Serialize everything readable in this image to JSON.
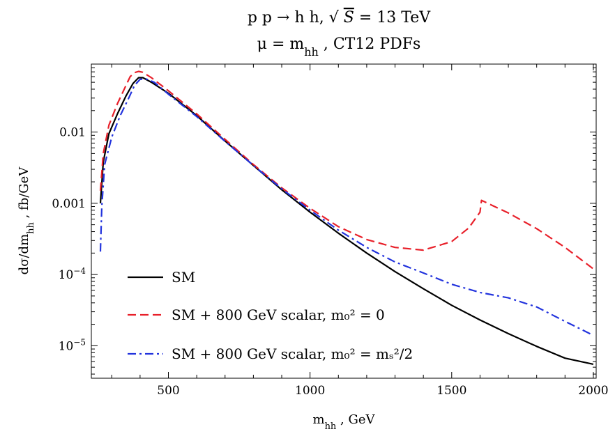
{
  "chart_data": {
    "type": "line",
    "title_line1": "p p → h h, √S = 13 TeV",
    "title_line2": "μ = m_hh , CT12 PDFs",
    "xlabel": "m_hh , GeV",
    "ylabel": "dσ/dm_hh , fb/GeV",
    "xlim": [
      228,
      2010
    ],
    "ylim": [
      3.5e-06,
      0.09
    ],
    "y_scale": "log",
    "x_ticks": [
      500,
      1000,
      1500,
      2000
    ],
    "y_ticks": [
      {
        "value": 1e-05,
        "mant": "10",
        "exp": "−5"
      },
      {
        "value": 0.0001,
        "mant": "10",
        "exp": "−4"
      },
      {
        "value": 0.001,
        "label": "0.001"
      },
      {
        "value": 0.01,
        "label": "0.01"
      }
    ],
    "grid": false,
    "legend_position": "bottom-left",
    "series": [
      {
        "name": "SM",
        "color": "#000000",
        "dash": "solid",
        "points": [
          [
            260,
            0.001
          ],
          [
            270,
            0.0038
          ],
          [
            290,
            0.0095
          ],
          [
            320,
            0.018
          ],
          [
            350,
            0.032
          ],
          [
            375,
            0.048
          ],
          [
            395,
            0.058
          ],
          [
            410,
            0.058
          ],
          [
            440,
            0.05
          ],
          [
            500,
            0.035
          ],
          [
            600,
            0.017
          ],
          [
            700,
            0.0075
          ],
          [
            800,
            0.0034
          ],
          [
            900,
            0.00155
          ],
          [
            1000,
            0.00075
          ],
          [
            1100,
            0.00038
          ],
          [
            1200,
            0.0002
          ],
          [
            1300,
            0.00011
          ],
          [
            1400,
            6.3e-05
          ],
          [
            1500,
            3.7e-05
          ],
          [
            1600,
            2.3e-05
          ],
          [
            1700,
            1.48e-05
          ],
          [
            1800,
            9.8e-06
          ],
          [
            1900,
            6.7e-06
          ],
          [
            2000,
            5.5e-06
          ]
        ]
      },
      {
        "name": "SM + 800 GeV scalar, m₀² = 0",
        "color": "#e8202a",
        "dash": "dashed",
        "points": [
          [
            260,
            0.0015
          ],
          [
            270,
            0.005
          ],
          [
            290,
            0.0125
          ],
          [
            320,
            0.025
          ],
          [
            350,
            0.045
          ],
          [
            365,
            0.06
          ],
          [
            380,
            0.068
          ],
          [
            395,
            0.071
          ],
          [
            410,
            0.069
          ],
          [
            440,
            0.058
          ],
          [
            500,
            0.038
          ],
          [
            600,
            0.018
          ],
          [
            700,
            0.0079
          ],
          [
            800,
            0.0035
          ],
          [
            900,
            0.00165
          ],
          [
            1000,
            0.00085
          ],
          [
            1100,
            0.00047
          ],
          [
            1200,
            0.00031
          ],
          [
            1300,
            0.00024
          ],
          [
            1400,
            0.00022
          ],
          [
            1500,
            0.00029
          ],
          [
            1560,
            0.00045
          ],
          [
            1600,
            0.00075
          ],
          [
            1605,
            0.0011
          ],
          [
            1700,
            0.00073
          ],
          [
            1800,
            0.00044
          ],
          [
            1900,
            0.00024
          ],
          [
            2000,
            0.00012
          ]
        ]
      },
      {
        "name": "SM + 800 GeV scalar, m₀² = mₛ²/2",
        "color": "#2233dd",
        "dash": "dashdot",
        "points": [
          [
            260,
            0.00021
          ],
          [
            265,
            0.0009
          ],
          [
            275,
            0.0035
          ],
          [
            300,
            0.0085
          ],
          [
            330,
            0.017
          ],
          [
            360,
            0.03
          ],
          [
            380,
            0.045
          ],
          [
            400,
            0.055
          ],
          [
            420,
            0.056
          ],
          [
            450,
            0.05
          ],
          [
            500,
            0.034
          ],
          [
            600,
            0.0165
          ],
          [
            700,
            0.0074
          ],
          [
            800,
            0.0034
          ],
          [
            900,
            0.0016
          ],
          [
            1000,
            0.0008
          ],
          [
            1100,
            0.00042
          ],
          [
            1200,
            0.00024
          ],
          [
            1300,
            0.00015
          ],
          [
            1400,
            0.000105
          ],
          [
            1500,
            7.3e-05
          ],
          [
            1600,
            5.6e-05
          ],
          [
            1700,
            4.7e-05
          ],
          [
            1800,
            3.5e-05
          ],
          [
            1900,
            2.2e-05
          ],
          [
            2000,
            1.4e-05
          ]
        ]
      }
    ]
  }
}
